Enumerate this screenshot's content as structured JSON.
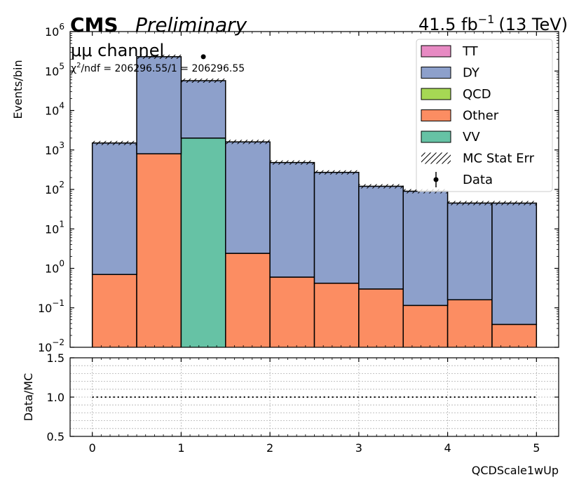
{
  "header": {
    "cms": "CMS",
    "preliminary": "Preliminary",
    "lumi": "41.5 fb",
    "lumi_exp": "−1",
    "energy": "(13 TeV)"
  },
  "annotations": {
    "channel": "μμ channel",
    "chi2_prefix": "χ",
    "chi2_text": "/ndf = 206296.55/1 = 206296.55"
  },
  "chart_data": [
    {
      "type": "bar",
      "stacked": true,
      "log_y": true,
      "bin_edges": [
        0,
        0.5,
        1,
        1.5,
        2,
        2.5,
        3,
        3.5,
        4,
        4.5,
        5
      ],
      "series": [
        {
          "name": "Other",
          "color": "#fc8d62",
          "values": [
            0.7,
            800,
            0,
            2.4,
            0.6,
            0.42,
            0.3,
            0.115,
            0.16,
            0.038
          ]
        },
        {
          "name": "VV",
          "color": "#66c2a5",
          "values": [
            0,
            0,
            2000,
            0,
            0,
            0,
            0,
            0,
            0,
            0
          ]
        },
        {
          "name": "QCD",
          "color": "#a6d854",
          "values": [
            0,
            0,
            0,
            0,
            0,
            0,
            0,
            0,
            0,
            0
          ]
        },
        {
          "name": "DY",
          "color": "#8da0cb",
          "values": [
            1500,
            230000,
            55000,
            1600,
            480,
            270,
            120,
            90,
            45,
            45
          ]
        },
        {
          "name": "TT",
          "color": "#e78ac3",
          "values": [
            0,
            0,
            0,
            0,
            0,
            0,
            0,
            0,
            0,
            0
          ]
        }
      ],
      "totals": [
        1500,
        230000,
        57000,
        1600,
        480,
        270,
        120,
        90,
        45,
        45
      ],
      "data_points": [
        {
          "x": 1.25,
          "y": 230000
        }
      ],
      "legend": [
        "TT",
        "DY",
        "QCD",
        "Other",
        "VV",
        "MC Stat Err",
        "Data"
      ],
      "legend_position": "top-right",
      "ylabel": "Events/bin",
      "ylim": [
        0.01,
        1000000
      ],
      "xlim": [
        -0.25,
        5.25
      ],
      "y_ticks": [
        {
          "v": 0.01,
          "m": "10",
          "e": "−2"
        },
        {
          "v": 0.1,
          "m": "10",
          "e": "−1"
        },
        {
          "v": 1,
          "m": "10",
          "e": "0"
        },
        {
          "v": 10,
          "m": "10",
          "e": "1"
        },
        {
          "v": 100,
          "m": "10",
          "e": "2"
        },
        {
          "v": 1000,
          "m": "10",
          "e": "3"
        },
        {
          "v": 10000,
          "m": "10",
          "e": "4"
        },
        {
          "v": 100000,
          "m": "10",
          "e": "5"
        },
        {
          "v": 1000000,
          "m": "10",
          "e": "6"
        }
      ]
    },
    {
      "type": "line",
      "x": [
        0,
        5
      ],
      "values": [
        1.0,
        1.0
      ],
      "ylabel": "Data/MC",
      "xlabel": "QCDScale1wUp",
      "ylim": [
        0.5,
        1.5
      ],
      "xlim": [
        -0.25,
        5.25
      ],
      "grid": true,
      "y_ticks": [
        "0.5",
        "1.0",
        "1.5"
      ],
      "x_ticks": [
        "0",
        "1",
        "2",
        "3",
        "4",
        "5"
      ]
    }
  ]
}
